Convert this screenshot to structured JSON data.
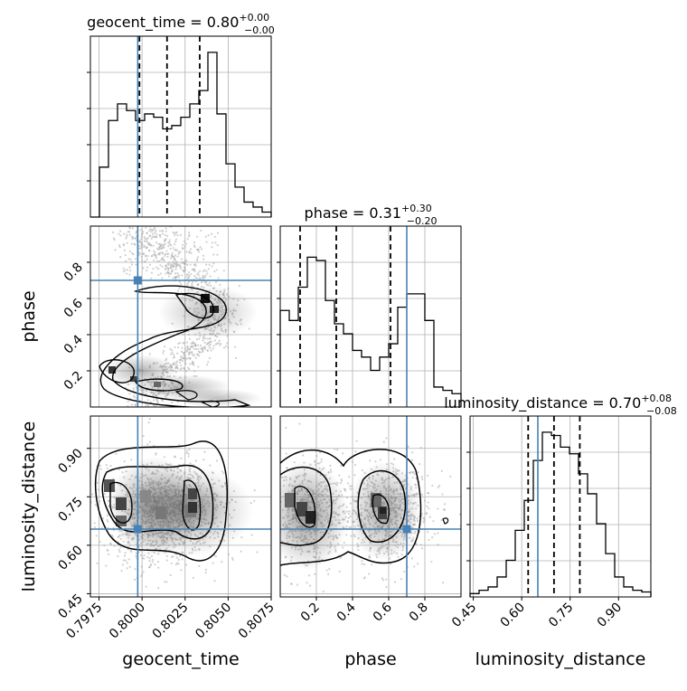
{
  "chart_data": {
    "type": "corner",
    "parameters": [
      "geocent_time",
      "phase",
      "luminosity_distance"
    ],
    "truths": {
      "geocent_time": 0.79975,
      "phase": 0.7,
      "luminosity_distance": 0.65
    },
    "titles": {
      "geocent_time": {
        "name": "geocent_time",
        "median": "0.80",
        "plus": "+0.00",
        "minus": "−0.00"
      },
      "phase": {
        "name": "phase",
        "median": "0.31",
        "plus": "+0.30",
        "minus": "−0.20"
      },
      "luminosity_distance": {
        "name": "luminosity_distance",
        "median": "0.70",
        "plus": "+0.08",
        "minus": "−0.08"
      }
    },
    "axes": {
      "geocent_time": {
        "range": [
          0.797,
          0.8075
        ],
        "ticks": [
          "0.7975",
          "0.8000",
          "0.8025",
          "0.8050",
          "0.8075"
        ],
        "tick_values": [
          0.7975,
          0.8,
          0.8025,
          0.805,
          0.8075
        ],
        "label": "geocent_time"
      },
      "phase": {
        "range": [
          0.0,
          1.0
        ],
        "ticks_x": [
          "0.2",
          "0.4",
          "0.6",
          "0.8"
        ],
        "ticks_y": [
          "0.2",
          "0.4",
          "0.6",
          "0.8"
        ],
        "tick_values": [
          0.2,
          0.4,
          0.6,
          0.8
        ],
        "label": "phase"
      },
      "luminosity_distance": {
        "range": [
          0.44,
          1.0
        ],
        "ticks": [
          "0.45",
          "0.60",
          "0.75",
          "0.90"
        ],
        "tick_values": [
          0.45,
          0.6,
          0.75,
          0.9
        ],
        "label": "luminosity_distance"
      }
    },
    "quantiles": {
      "geocent_time": [
        0.79985,
        0.80145,
        0.80335
      ],
      "phase": [
        0.11,
        0.31,
        0.61
      ],
      "luminosity_distance": [
        0.62,
        0.7,
        0.78
      ]
    },
    "histograms": {
      "geocent_time": {
        "range": [
          0.797,
          0.8075
        ],
        "counts": [
          0.0,
          0.3,
          0.58,
          0.68,
          0.64,
          0.58,
          0.62,
          0.6,
          0.53,
          0.55,
          0.6,
          0.68,
          0.76,
          0.99,
          0.62,
          0.32,
          0.18,
          0.09,
          0.06,
          0.03
        ]
      },
      "phase": {
        "range": [
          0.0,
          1.0
        ],
        "counts": [
          0.58,
          0.52,
          0.72,
          0.9,
          0.88,
          0.64,
          0.5,
          0.44,
          0.34,
          0.3,
          0.22,
          0.3,
          0.38,
          0.6,
          0.68,
          0.68,
          0.52,
          0.12,
          0.1,
          0.08
        ]
      },
      "luminosity_distance": {
        "range": [
          0.44,
          1.0
        ],
        "counts": [
          0.02,
          0.04,
          0.06,
          0.12,
          0.22,
          0.4,
          0.58,
          0.82,
          0.99,
          0.97,
          0.9,
          0.86,
          0.74,
          0.62,
          0.44,
          0.26,
          0.12,
          0.06,
          0.04,
          0.03
        ]
      }
    },
    "grid": true,
    "colors": {
      "truth": "#4682b4",
      "contour": "#000000",
      "density": "#555555",
      "grid": "#b0b0b0"
    }
  }
}
